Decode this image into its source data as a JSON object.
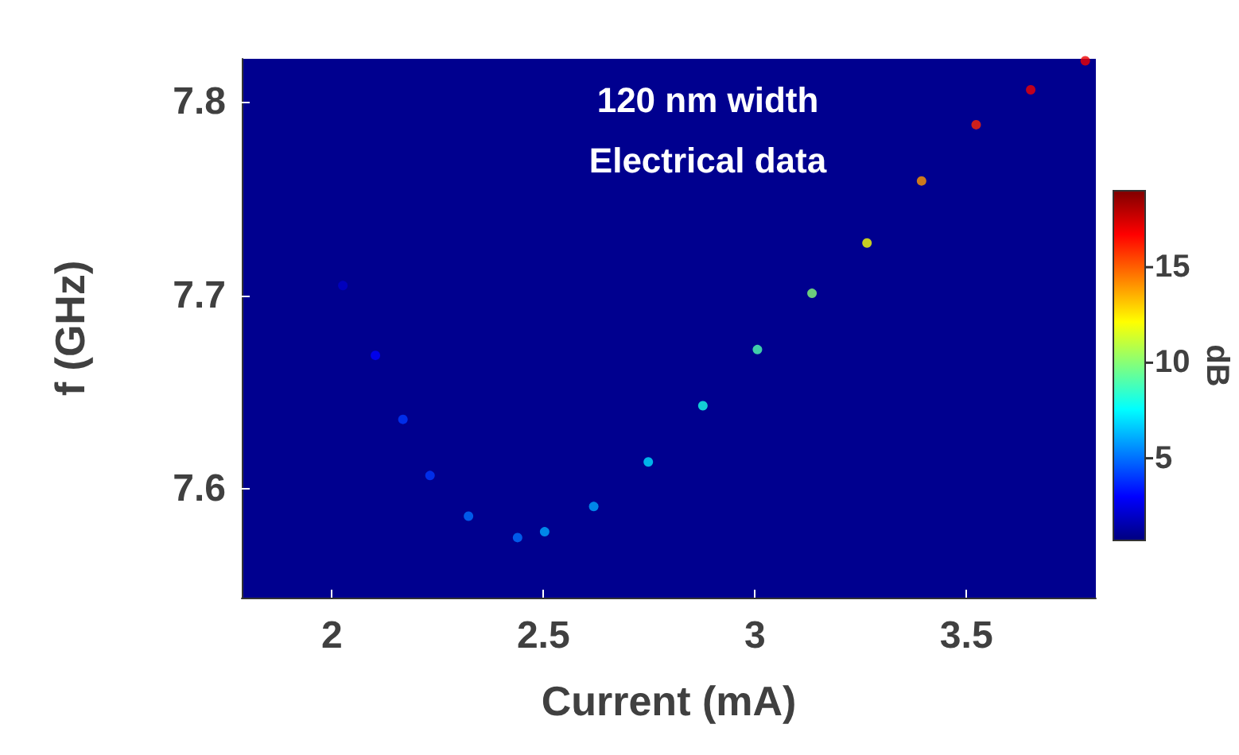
{
  "chart_data": {
    "type": "scatter",
    "xlabel": "Current (mA)",
    "ylabel": "f (GHz)",
    "clabel": "dB",
    "annotations": [
      "120 nm width",
      "Electrical data"
    ],
    "x": [
      2.026,
      2.103,
      2.168,
      2.232,
      2.323,
      2.439,
      2.503,
      2.619,
      2.748,
      2.877,
      3.006,
      3.135,
      3.265,
      3.394,
      3.523,
      3.652,
      3.781
    ],
    "values": [
      7.705,
      7.669,
      7.636,
      7.607,
      7.586,
      7.575,
      7.578,
      7.591,
      7.614,
      7.643,
      7.672,
      7.701,
      7.727,
      7.759,
      7.788,
      7.806,
      7.821
    ],
    "cvalues": [
      2,
      3,
      4,
      4,
      5,
      5,
      6,
      6,
      7,
      8,
      9,
      10,
      12,
      14,
      16,
      17,
      17
    ],
    "clim": [
      0.7,
      19
    ],
    "cticks": [
      5,
      10,
      15
    ],
    "xlim": [
      1.787,
      3.806
    ],
    "xticks": [
      2,
      2.5,
      3,
      3.5
    ],
    "ylim": [
      7.544,
      7.822
    ],
    "yticks": [
      7.6,
      7.7,
      7.8
    ],
    "grid": false,
    "marker": "circle"
  }
}
